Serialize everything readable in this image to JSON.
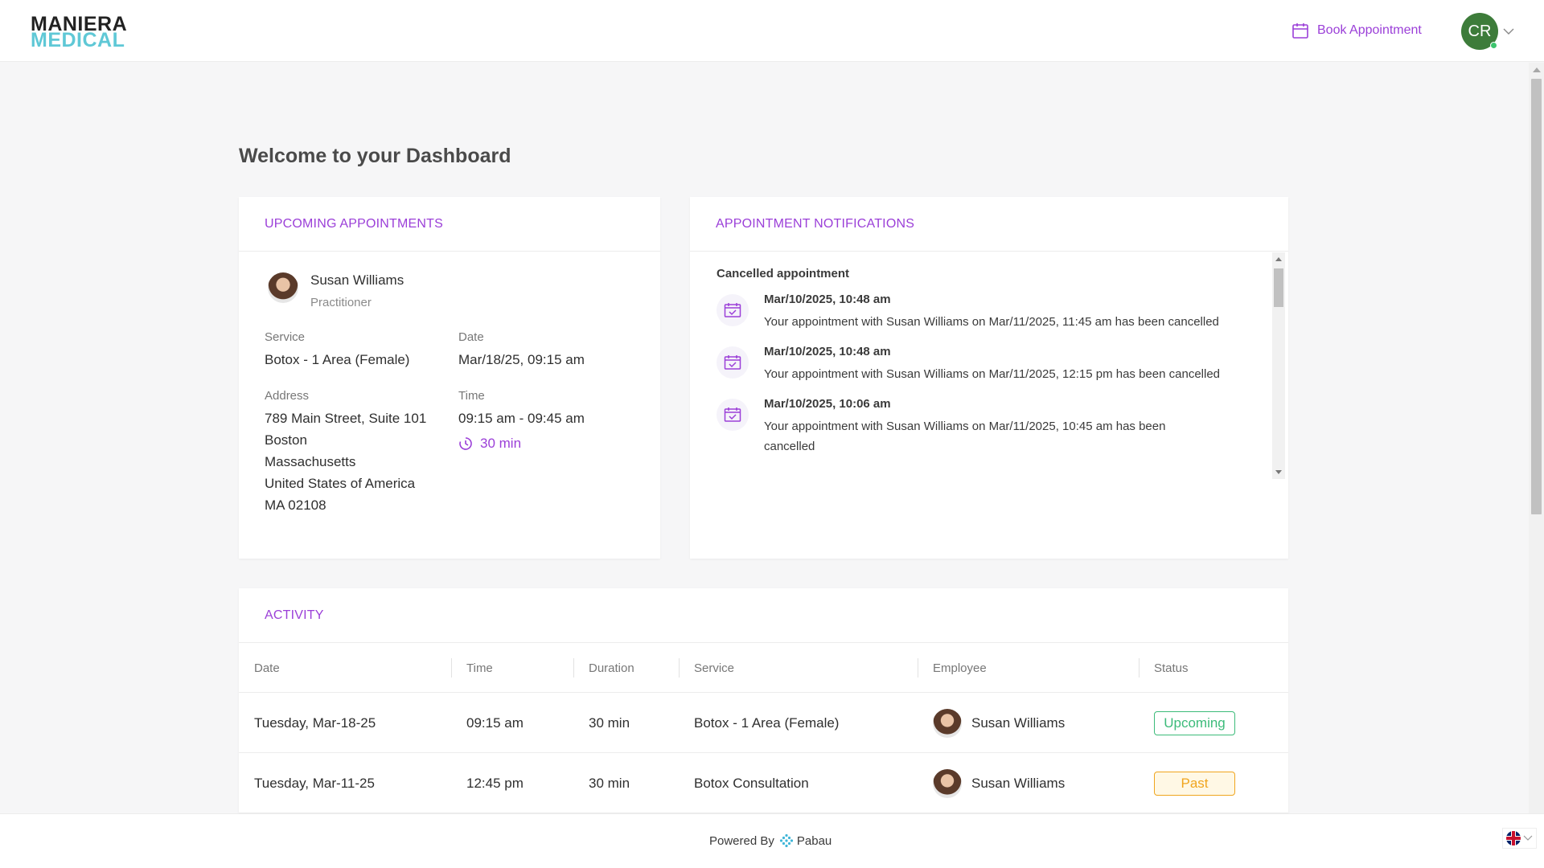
{
  "brand": {
    "line1": "MANIERA",
    "line2": "MEDICAL"
  },
  "header": {
    "book_label": "Book Appointment",
    "avatar_initials": "CR"
  },
  "page": {
    "title": "Welcome to your Dashboard"
  },
  "upcoming": {
    "title": "UPCOMING APPOINTMENTS",
    "practitioner_name": "Susan Williams",
    "practitioner_role": "Practitioner",
    "service_label": "Service",
    "service_value": "Botox - 1 Area (Female)",
    "date_label": "Date",
    "date_value": "Mar/18/25, 09:15 am",
    "address_label": "Address",
    "address_lines": [
      "789 Main Street, Suite 101",
      "Boston",
      "Massachusetts",
      "United States of America",
      "MA 02108"
    ],
    "time_label": "Time",
    "time_value": "09:15 am - 09:45 am",
    "duration": "30 min"
  },
  "notifications": {
    "title": "APPOINTMENT NOTIFICATIONS",
    "section": "Cancelled appointment",
    "items": [
      {
        "date": "Mar/10/2025, 10:48 am",
        "message": "Your appointment with Susan Williams on Mar/11/2025, 11:45 am has been cancelled"
      },
      {
        "date": "Mar/10/2025, 10:48 am",
        "message": "Your appointment with Susan Williams on Mar/11/2025, 12:15 pm has been cancelled"
      },
      {
        "date": "Mar/10/2025, 10:06 am",
        "message": "Your appointment with Susan Williams on Mar/11/2025, 10:45 am has been cancelled"
      }
    ]
  },
  "activity": {
    "title": "ACTIVITY",
    "columns": [
      "Date",
      "Time",
      "Duration",
      "Service",
      "Employee",
      "Status"
    ],
    "rows": [
      {
        "date": "Tuesday, Mar-18-25",
        "time": "09:15 am",
        "duration": "30 min",
        "service": "Botox - 1 Area (Female)",
        "employee": "Susan Williams",
        "status": "Upcoming"
      },
      {
        "date": "Tuesday, Mar-11-25",
        "time": "12:45 pm",
        "duration": "30 min",
        "service": "Botox Consultation",
        "employee": "Susan Williams",
        "status": "Past"
      }
    ]
  },
  "footer": {
    "powered_by": "Powered By",
    "vendor": "Pabau"
  },
  "colors": {
    "accent": "#9b3fd8",
    "brand_teal": "#5fc8d6",
    "upcoming": "#3cbb7a",
    "past": "#f0a51e",
    "avatar": "#3d7c3a"
  },
  "icons": {
    "book": "calendar-icon",
    "duration": "clock-icon",
    "notification": "calendar-check-icon",
    "language": "uk-flag-icon"
  }
}
